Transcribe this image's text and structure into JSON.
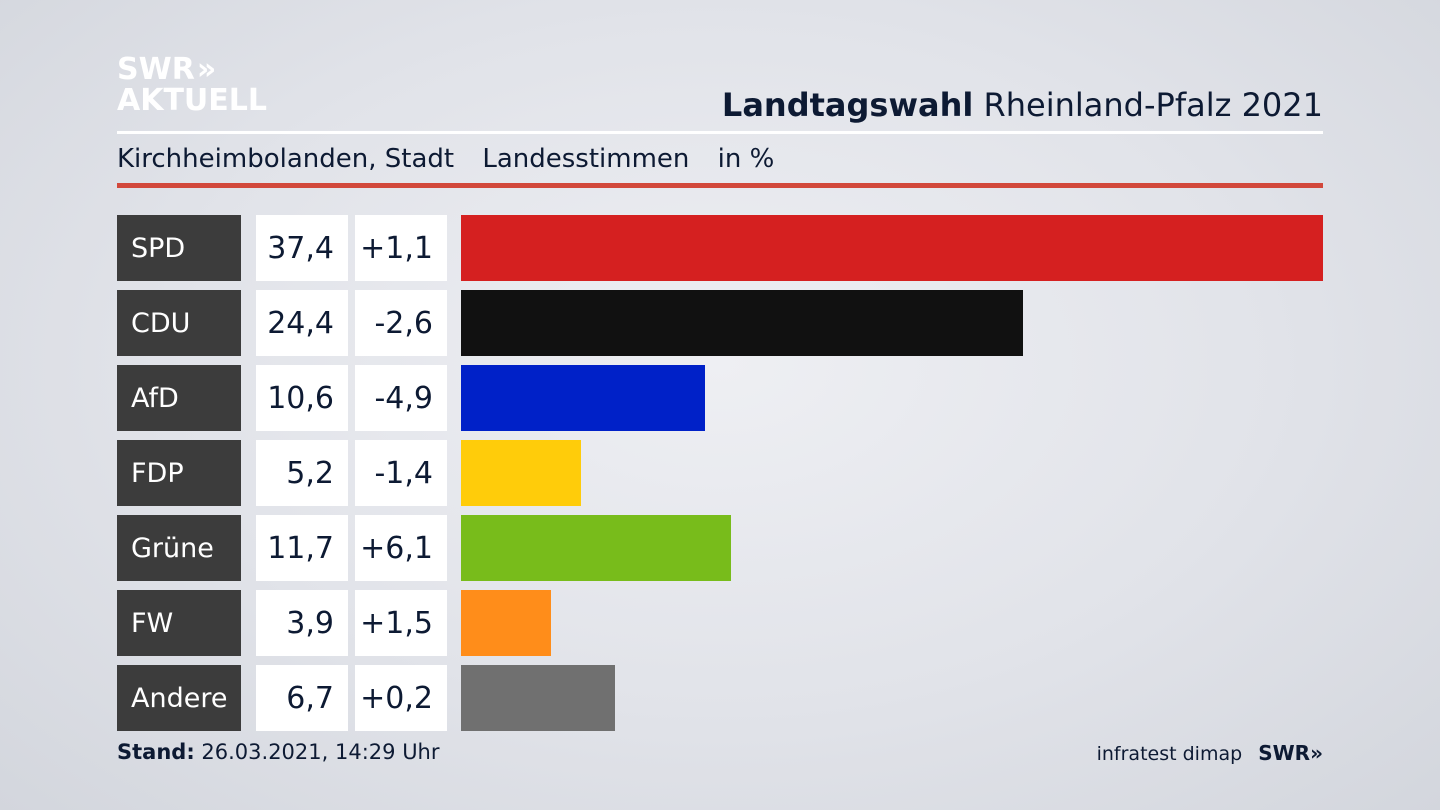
{
  "logo": {
    "line1": "SWR",
    "line2": "AKTUELL",
    "chevrons": "»"
  },
  "headline": {
    "bold": "Landtagswahl",
    "rest": "Rheinland-Pfalz 2021"
  },
  "subline": {
    "place": "Kirchheimbolanden, Stadt",
    "type": "Landesstimmen",
    "unit": "in %"
  },
  "footer": {
    "stand_label": "Stand:",
    "stand_value": "26.03.2021, 14:29 Uhr",
    "source": "infratest dimap",
    "brand": "SWR»"
  },
  "chart_data": {
    "type": "bar",
    "orientation": "horizontal",
    "title": "Landtagswahl Rheinland-Pfalz 2021",
    "subtitle": "Kirchheimbolanden, Stadt Landesstimmen in %",
    "categories": [
      "SPD",
      "CDU",
      "AfD",
      "FDP",
      "Grüne",
      "FW",
      "Andere"
    ],
    "values": [
      37.4,
      24.4,
      10.6,
      5.2,
      11.7,
      3.9,
      6.7
    ],
    "value_labels": [
      "37,4",
      "24,4",
      "10,6",
      "5,2",
      "11,7",
      "3,9",
      "6,7"
    ],
    "changes": [
      1.1,
      -2.6,
      -4.9,
      -1.4,
      6.1,
      1.5,
      0.2
    ],
    "change_labels": [
      "+1,1",
      "-2,6",
      "-4,9",
      "-1,4",
      "+6,1",
      "+1,5",
      "+0,2"
    ],
    "colors": [
      "#d52020",
      "#111111",
      "#0021c8",
      "#ffcc0a",
      "#78bc1b",
      "#ff8d1a",
      "#707070"
    ],
    "grid": false,
    "legend": "none"
  }
}
